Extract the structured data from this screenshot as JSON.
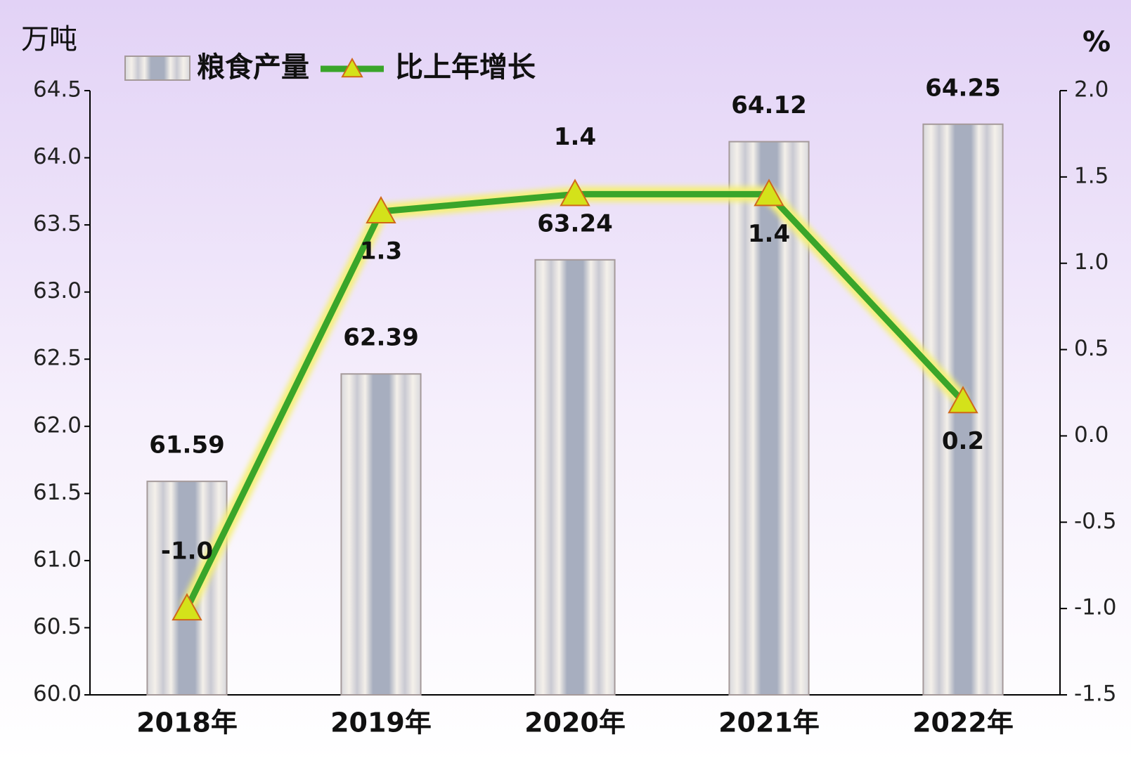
{
  "chart_data": {
    "type": "bar-line",
    "y_label": "万吨",
    "y2_label": "%",
    "categories": [
      "2018年",
      "2019年",
      "2020年",
      "2021年",
      "2022年"
    ],
    "series": [
      {
        "name": "粮食产量",
        "type": "bar",
        "color": "#b8bcc8",
        "values": [
          61.59,
          62.39,
          63.24,
          64.12,
          64.25
        ]
      },
      {
        "name": "比上年增长",
        "type": "line",
        "axis": "y2",
        "color": "#3aa52a",
        "values": [
          -1,
          1.3,
          1.4,
          1.4,
          0.2
        ],
        "value_labels": [
          "-1.0",
          "1.3",
          "1.4",
          "1.4",
          "0.2"
        ]
      }
    ],
    "ylim": [
      60,
      64.5
    ],
    "yticks": [
      {
        "value": 60,
        "label": "60.0"
      },
      60.5,
      {
        "value": 61,
        "label": "61.0"
      },
      61.5,
      {
        "value": 62,
        "label": "62.0"
      },
      62.5,
      {
        "value": 63,
        "label": "63.0"
      },
      63.5,
      {
        "value": 64,
        "label": "64.0"
      },
      64.5
    ],
    "y2lim": [
      -1.5,
      2
    ],
    "y2ticks": [
      -1.5,
      {
        "value": -1,
        "label": "-1.0"
      },
      -0.5,
      {
        "value": 0,
        "label": "0.0"
      },
      0.5,
      {
        "value": 1,
        "label": "1.0"
      },
      1.5,
      {
        "value": 2,
        "label": "2.0"
      }
    ]
  }
}
